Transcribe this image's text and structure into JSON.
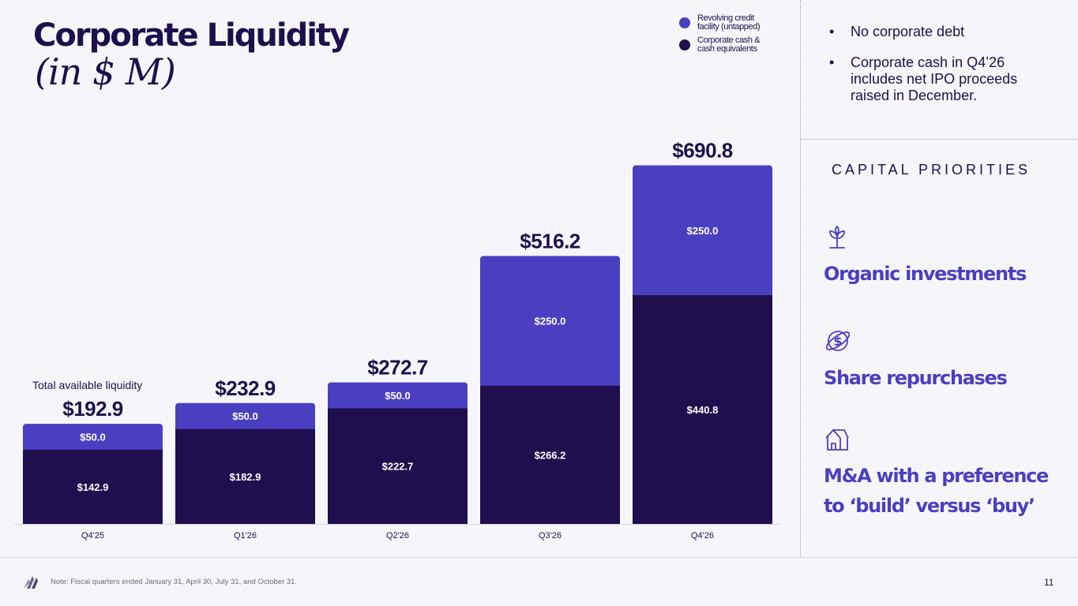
{
  "header": {
    "title": "Corporate Liquidity",
    "subtitle": "(in $ M)"
  },
  "legend": [
    {
      "label": "Revolving credit facility (untapped)",
      "color": "#4a3fc0"
    },
    {
      "label": "Corporate cash & cash equivalents",
      "color": "#200f4f"
    }
  ],
  "chart_data": {
    "type": "bar",
    "stacked": true,
    "title": "Corporate Liquidity (in $ M)",
    "categories": [
      "Q4'25",
      "Q1'26",
      "Q2'26",
      "Q3'26",
      "Q4'26"
    ],
    "series": [
      {
        "name": "Corporate cash & cash equivalents",
        "color": "#200f4f",
        "values": [
          142.9,
          182.9,
          222.7,
          266.2,
          440.8
        ],
        "labels": [
          "$142.9",
          "$182.9",
          "$222.7",
          "$266.2",
          "$440.8"
        ]
      },
      {
        "name": "Revolving credit facility (untapped)",
        "color": "#4a3fc0",
        "values": [
          50.0,
          50.0,
          50.0,
          250.0,
          250.0
        ],
        "labels": [
          "$50.0",
          "$50.0",
          "$50.0",
          "$250.0",
          "$250.0"
        ]
      }
    ],
    "totals": [
      192.9,
      232.9,
      272.7,
      516.2,
      690.8
    ],
    "total_labels": [
      "$192.9",
      "$232.9",
      "$272.7",
      "$516.2",
      "$690.8"
    ],
    "annotation": "Total available liquidity",
    "ylim": [
      0,
      760
    ],
    "xlabel": "",
    "ylabel": ""
  },
  "bullets": [
    "No corporate debt",
    "Corporate cash in Q4’26 includes net IPO proceeds raised in December."
  ],
  "capital_priorities": {
    "heading": "CAPITAL PRIORITIES",
    "items": [
      {
        "icon": "sprout-icon",
        "label_line1": "Organic investments",
        "label_line2": ""
      },
      {
        "icon": "dollar-globe-icon",
        "label_line1": "Share repurchases",
        "label_line2": ""
      },
      {
        "icon": "house-icon",
        "label_line1": "M&A with a preference",
        "label_line2": "to ‘build’ versus ‘buy’"
      }
    ]
  },
  "footer": {
    "note": "Note: Fiscal quarters ended January 31, April 30, July 31, and October 31.",
    "page_number": "11"
  }
}
